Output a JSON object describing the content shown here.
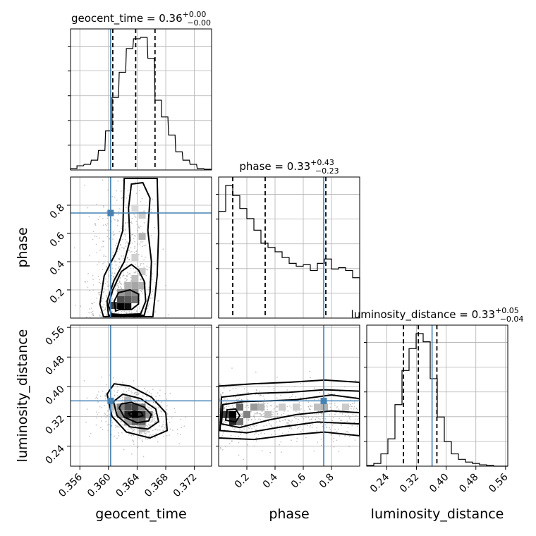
{
  "chart_data": {
    "type": "corner",
    "parameters": [
      {
        "name": "geocent_time",
        "axis_label": "geocent_time",
        "title": {
          "main": "geocent_time = 0.36",
          "sup": "+0.00",
          "sub": "−0.00"
        },
        "median": 0.3638,
        "lower": 0.3606,
        "upper": 0.3665,
        "truth": 0.3603,
        "range": [
          0.3547,
          0.3744
        ],
        "ticks": [
          0.356,
          0.36,
          0.364,
          0.368,
          0.372
        ],
        "tick_labels": [
          "0.356",
          "0.360",
          "0.364",
          "0.368",
          "0.372"
        ],
        "hist": [
          {
            "x0": 0.3547,
            "h": 0.01
          },
          {
            "x0": 0.3556,
            "h": 0.03
          },
          {
            "x0": 0.3566,
            "h": 0.04
          },
          {
            "x0": 0.3576,
            "h": 0.07
          },
          {
            "x0": 0.3586,
            "h": 0.14
          },
          {
            "x0": 0.3596,
            "h": 0.28
          },
          {
            "x0": 0.3605,
            "h": 0.52
          },
          {
            "x0": 0.3615,
            "h": 0.7
          },
          {
            "x0": 0.3625,
            "h": 0.87
          },
          {
            "x0": 0.3635,
            "h": 0.94
          },
          {
            "x0": 0.3645,
            "h": 0.95
          },
          {
            "x0": 0.3655,
            "h": 0.8
          },
          {
            "x0": 0.3665,
            "h": 0.5
          },
          {
            "x0": 0.3674,
            "h": 0.38
          },
          {
            "x0": 0.3684,
            "h": 0.25
          },
          {
            "x0": 0.3694,
            "h": 0.13
          },
          {
            "x0": 0.3704,
            "h": 0.07
          },
          {
            "x0": 0.3714,
            "h": 0.04
          },
          {
            "x0": 0.3724,
            "h": 0.01
          },
          {
            "x0": 0.3734,
            "h": 0.005
          }
        ]
      },
      {
        "name": "phase",
        "axis_label": "phase",
        "title": {
          "main": "phase = 0.33",
          "sup": "+0.43",
          "sub": "−0.23"
        },
        "median": 0.33,
        "lower": 0.1,
        "upper": 0.76,
        "truth": 0.745,
        "range": [
          0.0,
          1.0
        ],
        "ticks": [
          0.2,
          0.4,
          0.6,
          0.8
        ],
        "tick_labels": [
          "0.2",
          "0.4",
          "0.6",
          "0.8"
        ],
        "hist": [
          {
            "x0": 0.0,
            "h": 0.74
          },
          {
            "x0": 0.05,
            "h": 0.92
          },
          {
            "x0": 0.1,
            "h": 0.85
          },
          {
            "x0": 0.15,
            "h": 0.76
          },
          {
            "x0": 0.2,
            "h": 0.69
          },
          {
            "x0": 0.25,
            "h": 0.61
          },
          {
            "x0": 0.3,
            "h": 0.52
          },
          {
            "x0": 0.35,
            "h": 0.49
          },
          {
            "x0": 0.4,
            "h": 0.46
          },
          {
            "x0": 0.45,
            "h": 0.42
          },
          {
            "x0": 0.5,
            "h": 0.38
          },
          {
            "x0": 0.55,
            "h": 0.36
          },
          {
            "x0": 0.6,
            "h": 0.37
          },
          {
            "x0": 0.65,
            "h": 0.33
          },
          {
            "x0": 0.7,
            "h": 0.38
          },
          {
            "x0": 0.75,
            "h": 0.41
          },
          {
            "x0": 0.8,
            "h": 0.34
          },
          {
            "x0": 0.85,
            "h": 0.35
          },
          {
            "x0": 0.9,
            "h": 0.33
          },
          {
            "x0": 0.95,
            "h": 0.28
          }
        ]
      },
      {
        "name": "luminosity_distance",
        "axis_label": "luminosity_distance",
        "title": {
          "main": "luminosity_distance = 0.33",
          "sup": "+0.05",
          "sub": "−0.04"
        },
        "median": 0.325,
        "lower": 0.285,
        "upper": 0.375,
        "truth": 0.362,
        "range": [
          0.186,
          0.566
        ],
        "ticks": [
          0.24,
          0.32,
          0.4,
          0.48,
          0.56
        ],
        "tick_labels": [
          "0.24",
          "0.32",
          "0.40",
          "0.48",
          "0.56"
        ],
        "hist": [
          {
            "x0": 0.186,
            "h": 0.005
          },
          {
            "x0": 0.205,
            "h": 0.02
          },
          {
            "x0": 0.224,
            "h": 0.09
          },
          {
            "x0": 0.243,
            "h": 0.2
          },
          {
            "x0": 0.262,
            "h": 0.45
          },
          {
            "x0": 0.281,
            "h": 0.7
          },
          {
            "x0": 0.3,
            "h": 0.86
          },
          {
            "x0": 0.319,
            "h": 0.97
          },
          {
            "x0": 0.338,
            "h": 0.91
          },
          {
            "x0": 0.357,
            "h": 0.64
          },
          {
            "x0": 0.376,
            "h": 0.36
          },
          {
            "x0": 0.395,
            "h": 0.18
          },
          {
            "x0": 0.414,
            "h": 0.09
          },
          {
            "x0": 0.433,
            "h": 0.05
          },
          {
            "x0": 0.452,
            "h": 0.03
          },
          {
            "x0": 0.471,
            "h": 0.02
          },
          {
            "x0": 0.49,
            "h": 0.01
          },
          {
            "x0": 0.509,
            "h": 0.005
          },
          {
            "x0": 0.528,
            "h": 0.0
          },
          {
            "x0": 0.547,
            "h": 0.0
          }
        ]
      }
    ],
    "pairs": [
      {
        "x": "geocent_time",
        "y": "phase",
        "peak": [
          0.3618,
          0.09
        ],
        "spread": [
          0.0022,
          0.42
        ],
        "cells": [
          [
            0.3617,
            0.09,
            1.0
          ],
          [
            0.3627,
            0.09,
            0.95
          ],
          [
            0.3607,
            0.09,
            0.75
          ],
          [
            0.3617,
            0.13,
            0.7
          ],
          [
            0.3627,
            0.13,
            0.65
          ],
          [
            0.3637,
            0.13,
            0.55
          ],
          [
            0.3627,
            0.18,
            0.5
          ],
          [
            0.3637,
            0.18,
            0.45
          ],
          [
            0.3617,
            0.18,
            0.4
          ],
          [
            0.3637,
            0.23,
            0.35
          ],
          [
            0.3647,
            0.23,
            0.3
          ],
          [
            0.3627,
            0.23,
            0.3
          ],
          [
            0.3637,
            0.28,
            0.25
          ],
          [
            0.3647,
            0.33,
            0.2
          ],
          [
            0.3637,
            0.43,
            0.18
          ],
          [
            0.3647,
            0.58,
            0.3
          ],
          [
            0.3647,
            0.73,
            0.2
          ],
          [
            0.3637,
            0.78,
            0.15
          ]
        ],
        "contours": [
          [
            [
              0.361,
              0.05
            ],
            [
              0.3615,
              0.06
            ],
            [
              0.3632,
              0.06
            ],
            [
              0.3642,
              0.1
            ],
            [
              0.3642,
              0.17
            ],
            [
              0.363,
              0.2
            ],
            [
              0.3614,
              0.18
            ],
            [
              0.3608,
              0.12
            ],
            [
              0.361,
              0.05
            ]
          ],
          [
            [
              0.3604,
              0.03
            ],
            [
              0.3618,
              0.025
            ],
            [
              0.3645,
              0.03
            ],
            [
              0.3652,
              0.12
            ],
            [
              0.365,
              0.26
            ],
            [
              0.3642,
              0.34
            ],
            [
              0.3632,
              0.38
            ],
            [
              0.3618,
              0.33
            ],
            [
              0.3606,
              0.2
            ],
            [
              0.36,
              0.09
            ],
            [
              0.3604,
              0.03
            ]
          ],
          [
            [
              0.36,
              0.02
            ],
            [
              0.365,
              0.02
            ],
            [
              0.3658,
              0.18
            ],
            [
              0.366,
              0.4
            ],
            [
              0.3655,
              0.62
            ],
            [
              0.3658,
              0.85
            ],
            [
              0.3648,
              0.96
            ],
            [
              0.3632,
              0.95
            ],
            [
              0.3628,
              0.78
            ],
            [
              0.363,
              0.55
            ],
            [
              0.3622,
              0.4
            ],
            [
              0.3608,
              0.27
            ],
            [
              0.3598,
              0.12
            ],
            [
              0.36,
              0.02
            ]
          ],
          [
            [
              0.3593,
              0.01
            ],
            [
              0.3662,
              0.01
            ],
            [
              0.3668,
              0.3
            ],
            [
              0.367,
              0.6
            ],
            [
              0.3668,
              0.99
            ],
            [
              0.3622,
              0.99
            ],
            [
              0.362,
              0.62
            ],
            [
              0.361,
              0.46
            ],
            [
              0.3594,
              0.3
            ],
            [
              0.3588,
              0.1
            ],
            [
              0.3593,
              0.01
            ]
          ]
        ]
      },
      {
        "x": "geocent_time",
        "y": "luminosity_distance",
        "peak": [
          0.3638,
          0.325
        ],
        "spread": [
          0.0024,
          0.035
        ],
        "cells": [
          [
            0.3637,
            0.325,
            1.0
          ],
          [
            0.3627,
            0.325,
            0.85
          ],
          [
            0.3647,
            0.325,
            0.8
          ],
          [
            0.3627,
            0.345,
            0.7
          ],
          [
            0.3637,
            0.345,
            0.75
          ],
          [
            0.3647,
            0.306,
            0.6
          ],
          [
            0.3617,
            0.345,
            0.5
          ],
          [
            0.3637,
            0.306,
            0.6
          ],
          [
            0.3657,
            0.325,
            0.45
          ],
          [
            0.3617,
            0.325,
            0.45
          ],
          [
            0.3627,
            0.306,
            0.4
          ],
          [
            0.3647,
            0.345,
            0.5
          ],
          [
            0.3627,
            0.364,
            0.3
          ],
          [
            0.3647,
            0.287,
            0.3
          ],
          [
            0.3607,
            0.345,
            0.25
          ]
        ],
        "contours": [
          [
            [
              0.363,
              0.322
            ],
            [
              0.364,
              0.318
            ],
            [
              0.3648,
              0.322
            ],
            [
              0.3646,
              0.331
            ],
            [
              0.3636,
              0.334
            ],
            [
              0.3628,
              0.329
            ],
            [
              0.363,
              0.322
            ]
          ],
          [
            [
              0.3615,
              0.343
            ],
            [
              0.3622,
              0.318
            ],
            [
              0.364,
              0.303
            ],
            [
              0.3656,
              0.308
            ],
            [
              0.366,
              0.325
            ],
            [
              0.365,
              0.345
            ],
            [
              0.3632,
              0.358
            ],
            [
              0.3618,
              0.354
            ],
            [
              0.3615,
              0.343
            ]
          ],
          [
            [
              0.3607,
              0.36
            ],
            [
              0.3612,
              0.322
            ],
            [
              0.363,
              0.292
            ],
            [
              0.3655,
              0.286
            ],
            [
              0.367,
              0.306
            ],
            [
              0.3666,
              0.34
            ],
            [
              0.3645,
              0.368
            ],
            [
              0.362,
              0.38
            ],
            [
              0.3607,
              0.36
            ]
          ],
          [
            [
              0.3598,
              0.38
            ],
            [
              0.3605,
              0.32
            ],
            [
              0.3625,
              0.278
            ],
            [
              0.3658,
              0.262
            ],
            [
              0.3682,
              0.282
            ],
            [
              0.368,
              0.33
            ],
            [
              0.366,
              0.372
            ],
            [
              0.363,
              0.402
            ],
            [
              0.3608,
              0.408
            ],
            [
              0.3598,
              0.38
            ]
          ]
        ]
      },
      {
        "x": "phase",
        "y": "luminosity_distance",
        "peak": [
          0.08,
          0.325
        ],
        "spread": [
          0.5,
          0.04
        ],
        "cells": [
          [
            0.1,
            0.325,
            1.0
          ],
          [
            0.1,
            0.306,
            0.85
          ],
          [
            0.05,
            0.325,
            0.75
          ],
          [
            0.15,
            0.345,
            0.6
          ],
          [
            0.2,
            0.325,
            0.5
          ],
          [
            0.25,
            0.345,
            0.4
          ],
          [
            0.15,
            0.306,
            0.55
          ],
          [
            0.3,
            0.345,
            0.3
          ],
          [
            0.35,
            0.325,
            0.25
          ],
          [
            0.45,
            0.345,
            0.2
          ],
          [
            0.55,
            0.345,
            0.2
          ],
          [
            0.7,
            0.345,
            0.25
          ],
          [
            0.75,
            0.345,
            0.3
          ],
          [
            0.9,
            0.345,
            0.2
          ]
        ],
        "contours": [
          [
            [
              0.05,
              0.31
            ],
            [
              0.12,
              0.305
            ],
            [
              0.15,
              0.322
            ],
            [
              0.12,
              0.34
            ],
            [
              0.06,
              0.338
            ],
            [
              0.05,
              0.31
            ]
          ],
          [
            [
              0.02,
              0.3
            ],
            [
              0.15,
              0.29
            ],
            [
              0.35,
              0.31
            ],
            [
              0.55,
              0.325
            ],
            [
              0.8,
              0.335
            ],
            [
              1.0,
              0.33
            ],
            [
              1.0,
              0.368
            ],
            [
              0.8,
              0.378
            ],
            [
              0.55,
              0.365
            ],
            [
              0.35,
              0.362
            ],
            [
              0.18,
              0.36
            ],
            [
              0.03,
              0.352
            ],
            [
              0.02,
              0.3
            ]
          ],
          [
            [
              0.01,
              0.282
            ],
            [
              0.2,
              0.276
            ],
            [
              0.45,
              0.292
            ],
            [
              0.7,
              0.305
            ],
            [
              1.0,
              0.3
            ],
            [
              1.0,
              0.388
            ],
            [
              0.75,
              0.392
            ],
            [
              0.5,
              0.385
            ],
            [
              0.25,
              0.382
            ],
            [
              0.02,
              0.372
            ],
            [
              0.01,
              0.282
            ]
          ],
          [
            [
              0.0,
              0.262
            ],
            [
              0.25,
              0.258
            ],
            [
              0.5,
              0.27
            ],
            [
              0.75,
              0.278
            ],
            [
              1.0,
              0.268
            ],
            [
              1.0,
              0.412
            ],
            [
              0.75,
              0.418
            ],
            [
              0.5,
              0.412
            ],
            [
              0.25,
              0.408
            ],
            [
              0.0,
              0.402
            ],
            [
              0.0,
              0.262
            ]
          ]
        ]
      }
    ],
    "truth_color": "#4682b4",
    "grid": true
  }
}
